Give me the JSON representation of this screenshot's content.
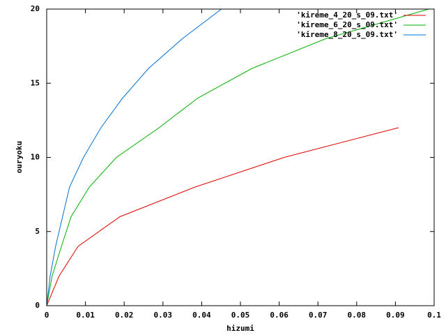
{
  "chart_data": {
    "type": "line",
    "xlabel": "hizumi",
    "ylabel": "ouryoku",
    "xlim": [
      0,
      0.1
    ],
    "ylim": [
      0,
      20
    ],
    "xticks": [
      0,
      0.01,
      0.02,
      0.03,
      0.04,
      0.05,
      0.06,
      0.07,
      0.08,
      0.09,
      0.1
    ],
    "yticks": [
      0,
      5,
      10,
      15,
      20
    ],
    "legend": "top-right",
    "series": [
      {
        "name": "'kireme_4_20_s_09.txt'",
        "color": "#e00000",
        "x": [
          0,
          0.0032,
          0.0081,
          0.0189,
          0.0383,
          0.0613,
          0.0908
        ],
        "values": [
          0,
          2,
          4,
          6,
          8,
          10,
          12
        ]
      },
      {
        "name": "'kireme_6_20_s_09.txt'",
        "color": "#00b000",
        "x": [
          0,
          0.0014,
          0.0038,
          0.0063,
          0.011,
          0.018,
          0.029,
          0.039,
          0.053,
          0.072,
          0.0986
        ],
        "values": [
          0,
          2,
          4,
          6,
          8,
          10,
          12,
          14,
          16,
          18,
          20
        ]
      },
      {
        "name": "'kireme_8_20_s_09.txt'",
        "color": "#0070d0",
        "x": [
          0,
          0.0009,
          0.0023,
          0.0041,
          0.0059,
          0.0095,
          0.014,
          0.0196,
          0.0263,
          0.035,
          0.0451
        ],
        "values": [
          0,
          2,
          4,
          6,
          8,
          10,
          12,
          14,
          16,
          18,
          20
        ]
      }
    ]
  }
}
